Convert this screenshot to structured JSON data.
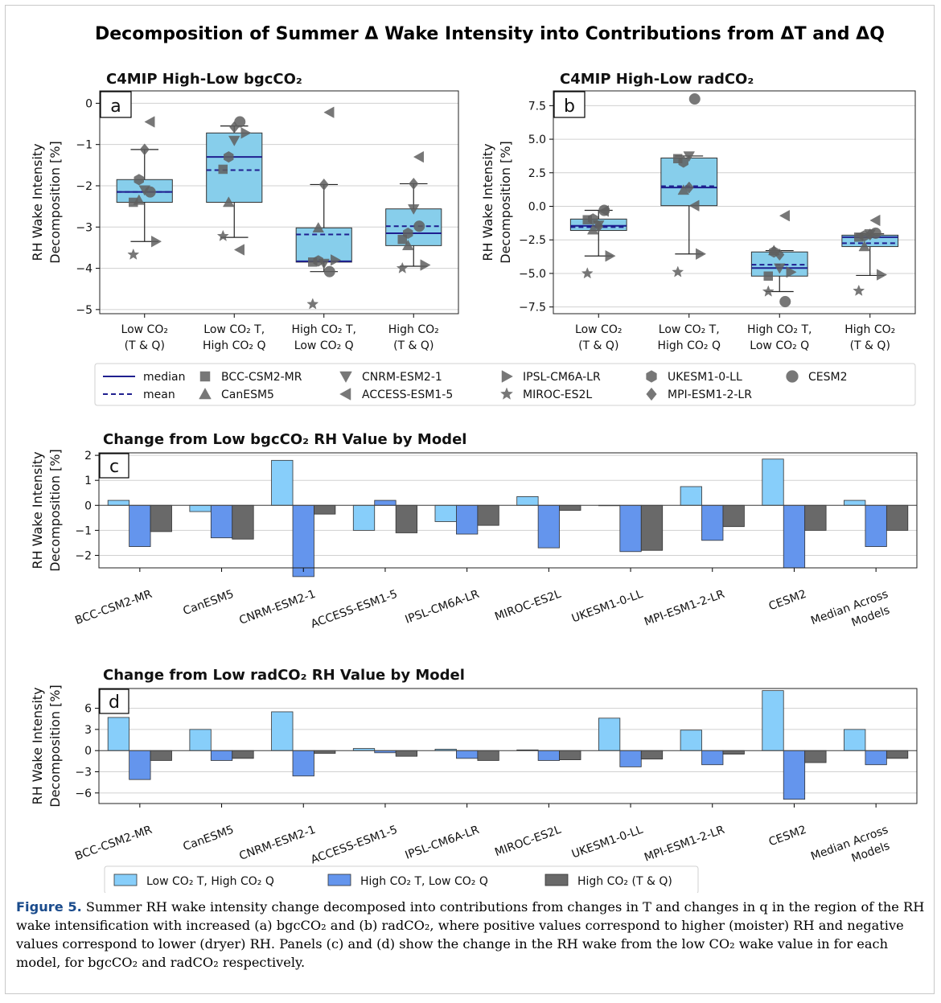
{
  "figure": {
    "title": "Decomposition of Summer Δ Wake Intensity into Contributions from ΔT and ΔQ",
    "caption_label": "Figure 5.",
    "caption_text": "Summer RH wake intensity change decomposed into contributions from changes in T and changes in q in the region of the RH wake intensification with increased (a) bgcCO₂ and (b) radCO₂, where positive values correspond to higher (moister) RH and negative values correspond to lower (dryer) RH. Panels (c) and (d) show the change in the RH wake from the low CO₂ wake value in for each model, for bgcCO₂ and radCO₂ respectively."
  },
  "colors": {
    "box_fill": "#87ceeb",
    "median_line": "#1f1f8f",
    "grid": "#d0d0d0",
    "marker": "#606060",
    "bar_lowT_highQ": "#87cefa",
    "bar_highT_lowQ": "#6495ed",
    "bar_highCO2": "#696969"
  },
  "legend_models": {
    "median_label": "median",
    "mean_label": "mean",
    "models": [
      {
        "name": "BCC-CSM2-MR",
        "marker": "square"
      },
      {
        "name": "CanESM5",
        "marker": "triangle-up"
      },
      {
        "name": "CNRM-ESM2-1",
        "marker": "triangle-down"
      },
      {
        "name": "ACCESS-ESM1-5",
        "marker": "triangle-left"
      },
      {
        "name": "IPSL-CM6A-LR",
        "marker": "triangle-right"
      },
      {
        "name": "MIROC-ES2L",
        "marker": "star"
      },
      {
        "name": "UKESM1-0-LL",
        "marker": "hexagon"
      },
      {
        "name": "MPI-ESM1-2-LR",
        "marker": "diamond"
      },
      {
        "name": "CESM2",
        "marker": "circle"
      }
    ]
  },
  "legend_bars": [
    "Low CO₂ T, High CO₂ Q",
    "High CO₂ T, Low CO₂ Q",
    "High CO₂ (T & Q)"
  ],
  "chart_data": [
    {
      "panel": "a",
      "type": "box",
      "title": "C4MIP High-Low bgcCO₂",
      "ylabel": "RH Wake Intensity Decomposition [%]",
      "ylim": [
        -5.1,
        0.3
      ],
      "yticks": [
        0,
        -1,
        -2,
        -3,
        -4,
        -5
      ],
      "ytick_labels": [
        "0",
        "−1",
        "−2",
        "−3",
        "−4",
        "−5"
      ],
      "grid": true,
      "categories": [
        "Low CO₂ (T & Q)",
        "Low CO₂ T, High CO₂ Q",
        "High CO₂ T, Low CO₂ Q",
        "High CO₂ (T & Q)"
      ],
      "boxes": [
        {
          "q1": -2.4,
          "q3": -1.85,
          "median": -2.15,
          "mean": -2.15,
          "whisker_low": -3.35,
          "whisker_high": -1.12
        },
        {
          "q1": -2.4,
          "q3": -0.72,
          "median": -1.3,
          "mean": -1.62,
          "whisker_low": -3.25,
          "whisker_high": -0.55
        },
        {
          "q1": -3.85,
          "q3": -3.02,
          "median": -3.83,
          "mean": -3.18,
          "whisker_low": -4.08,
          "whisker_high": -1.97
        },
        {
          "q1": -3.45,
          "q3": -2.56,
          "median": -3.15,
          "mean": -2.98,
          "whisker_low": -3.95,
          "whisker_high": -1.95
        }
      ],
      "points": [
        {
          "BCC-CSM2-MR": -2.4,
          "CanESM5": -2.35,
          "CNRM-ESM2-1": -2.1,
          "ACCESS-ESM1-5": -0.45,
          "IPSL-CM6A-LR": -3.35,
          "MIROC-ES2L": -3.67,
          "UKESM1-0-LL": -1.85,
          "MPI-ESM1-2-LR": -1.12,
          "CESM2": -2.15
        },
        {
          "BCC-CSM2-MR": -1.6,
          "CanESM5": -2.4,
          "CNRM-ESM2-1": -0.9,
          "ACCESS-ESM1-5": -3.55,
          "IPSL-CM6A-LR": -0.72,
          "MIROC-ES2L": -3.22,
          "UKESM1-0-LL": -1.3,
          "MPI-ESM1-2-LR": -0.58,
          "CESM2": -0.45
        },
        {
          "BCC-CSM2-MR": -3.85,
          "CanESM5": -3.02,
          "CNRM-ESM2-1": -3.88,
          "ACCESS-ESM1-5": -0.22,
          "IPSL-CM6A-LR": -3.8,
          "MIROC-ES2L": -4.87,
          "UKESM1-0-LL": -3.82,
          "MPI-ESM1-2-LR": -1.97,
          "CESM2": -4.08
        },
        {
          "BCC-CSM2-MR": -3.3,
          "CanESM5": -3.45,
          "CNRM-ESM2-1": -2.56,
          "ACCESS-ESM1-5": -1.3,
          "IPSL-CM6A-LR": -3.92,
          "MIROC-ES2L": -4.0,
          "UKESM1-0-LL": -3.15,
          "MPI-ESM1-2-LR": -1.95,
          "CESM2": -2.98
        }
      ]
    },
    {
      "panel": "b",
      "type": "box",
      "title": "C4MIP High-Low radCO₂",
      "ylabel": "RH Wake Intensity Decomposition [%]",
      "ylim": [
        -8.0,
        8.6
      ],
      "yticks": [
        7.5,
        5.0,
        2.5,
        0.0,
        -2.5,
        -5.0,
        -7.5
      ],
      "ytick_labels": [
        "7.5",
        "5.0",
        "2.5",
        "0.0",
        "−2.5",
        "−5.0",
        "−7.5"
      ],
      "grid": true,
      "categories": [
        "Low CO₂ (T & Q)",
        "Low CO₂ T, High CO₂ Q",
        "High CO₂ T, Low CO₂ Q",
        "High CO₂ (T & Q)"
      ],
      "boxes": [
        {
          "q1": -1.8,
          "q3": -0.95,
          "median": -1.45,
          "mean": -1.55,
          "whisker_low": -3.7,
          "whisker_high": -0.3
        },
        {
          "q1": 0.05,
          "q3": 3.6,
          "median": 1.4,
          "mean": 1.5,
          "whisker_low": -3.55,
          "whisker_high": 3.75
        },
        {
          "q1": -5.2,
          "q3": -3.4,
          "median": -4.6,
          "mean": -4.35,
          "whisker_low": -6.35,
          "whisker_high": -3.3
        },
        {
          "q1": -3.0,
          "q3": -2.15,
          "median": -2.3,
          "mean": -2.75,
          "whisker_low": -5.15,
          "whisker_high": -2.05
        }
      ],
      "points": [
        {
          "BCC-CSM2-MR": -1.0,
          "CanESM5": -1.75,
          "CNRM-ESM2-1": -1.4,
          "ACCESS-ESM1-5": -0.35,
          "IPSL-CM6A-LR": -3.7,
          "MIROC-ES2L": -5.0,
          "UKESM1-0-LL": -0.95,
          "MPI-ESM1-2-LR": -1.5,
          "CESM2": -0.3
        },
        {
          "BCC-CSM2-MR": 3.55,
          "CanESM5": 1.2,
          "CNRM-ESM2-1": 3.75,
          "ACCESS-ESM1-5": 0.05,
          "IPSL-CM6A-LR": -3.55,
          "MIROC-ES2L": -4.9,
          "UKESM1-0-LL": 3.3,
          "MPI-ESM1-2-LR": 1.4,
          "CESM2": 8.0
        },
        {
          "BCC-CSM2-MR": -5.2,
          "CanESM5": -3.3,
          "CNRM-ESM2-1": -4.6,
          "ACCESS-ESM1-5": -0.7,
          "IPSL-CM6A-LR": -4.9,
          "MIROC-ES2L": -6.35,
          "UKESM1-0-LL": -3.4,
          "MPI-ESM1-2-LR": -3.6,
          "CESM2": -7.1
        },
        {
          "BCC-CSM2-MR": -2.3,
          "CanESM5": -3.0,
          "CNRM-ESM2-1": -2.05,
          "ACCESS-ESM1-5": -1.05,
          "IPSL-CM6A-LR": -5.1,
          "MIROC-ES2L": -6.3,
          "UKESM1-0-LL": -2.2,
          "MPI-ESM1-2-LR": -2.1,
          "CESM2": -2.0
        }
      ]
    },
    {
      "panel": "c",
      "type": "bar",
      "title": "Change from Low bgcCO₂ RH Value by Model",
      "ylabel": "RH Wake Intensity Decomposition [%]",
      "ylim": [
        -2.5,
        2.1
      ],
      "yticks": [
        2,
        1,
        0,
        -1,
        -2
      ],
      "ytick_labels": [
        "2",
        "1",
        "0",
        "−1",
        "−2"
      ],
      "grid": true,
      "categories": [
        "BCC-CSM2-MR",
        "CanESM5",
        "CNRM-ESM2-1",
        "ACCESS-ESM1-5",
        "IPSL-CM6A-LR",
        "MIROC-ES2L",
        "UKESM1-0-LL",
        "MPI-ESM1-2-LR",
        "CESM2",
        "Median Across Models"
      ],
      "series": [
        {
          "name": "Low CO₂ T, High CO₂ Q",
          "values": [
            0.2,
            -0.25,
            1.8,
            -1.0,
            -0.65,
            0.35,
            0.0,
            0.75,
            1.85,
            0.2
          ]
        },
        {
          "name": "High CO₂ T, Low CO₂ Q",
          "values": [
            -1.65,
            -1.3,
            -2.85,
            0.2,
            -1.15,
            -1.7,
            -1.85,
            -1.4,
            -2.5,
            -1.65
          ]
        },
        {
          "name": "High CO₂ (T & Q)",
          "values": [
            -1.05,
            -1.35,
            -0.35,
            -1.1,
            -0.8,
            -0.2,
            -1.8,
            -0.85,
            -1.0,
            -1.0
          ]
        }
      ]
    },
    {
      "panel": "d",
      "type": "bar",
      "title": "Change from Low radCO₂ RH Value by Model",
      "ylabel": "RH Wake Intensity Decomposition [%]",
      "ylim": [
        -7.5,
        8.8
      ],
      "yticks": [
        6,
        3,
        0,
        -3,
        -6
      ],
      "ytick_labels": [
        "6",
        "3",
        "0",
        "−3",
        "−6"
      ],
      "grid": true,
      "categories": [
        "BCC-CSM2-MR",
        "CanESM5",
        "CNRM-ESM2-1",
        "ACCESS-ESM1-5",
        "IPSL-CM6A-LR",
        "MIROC-ES2L",
        "UKESM1-0-LL",
        "MPI-ESM1-2-LR",
        "CESM2",
        "Median Across Models"
      ],
      "series": [
        {
          "name": "Low CO₂ T, High CO₂ Q",
          "values": [
            4.7,
            3.0,
            5.5,
            0.3,
            0.2,
            0.1,
            4.6,
            2.9,
            8.5,
            3.0
          ]
        },
        {
          "name": "High CO₂ T, Low CO₂ Q",
          "values": [
            -4.1,
            -1.4,
            -3.6,
            -0.3,
            -1.1,
            -1.4,
            -2.3,
            -2.0,
            -6.9,
            -2.0
          ]
        },
        {
          "name": "High CO₂ (T & Q)",
          "values": [
            -1.4,
            -1.1,
            -0.4,
            -0.8,
            -1.4,
            -1.3,
            -1.2,
            -0.5,
            -1.7,
            -1.1
          ]
        }
      ]
    }
  ]
}
